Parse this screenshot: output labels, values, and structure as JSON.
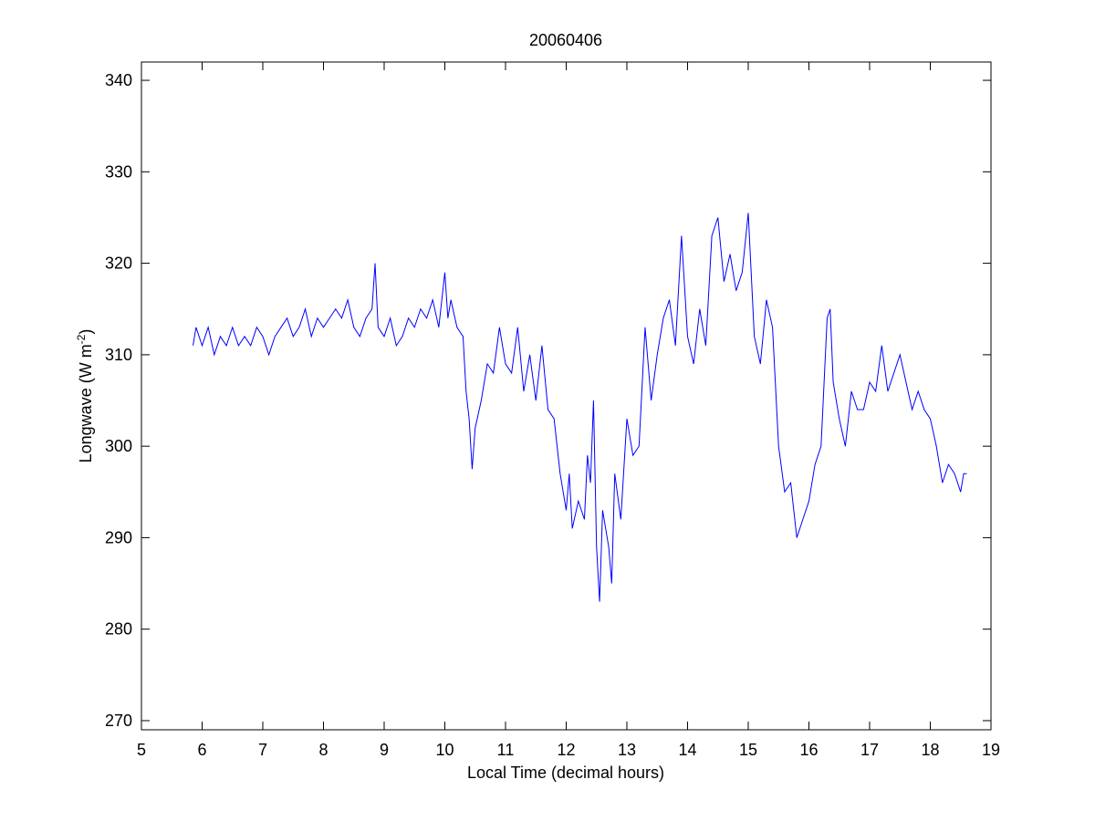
{
  "chart_data": {
    "type": "line",
    "title": "20060406",
    "xlabel": "Local Time (decimal hours)",
    "ylabel": {
      "text": "Longwave (W m",
      "superscript": "-2",
      "suffix": ")"
    },
    "xlim": [
      5,
      19
    ],
    "xticks": [
      5,
      6,
      7,
      8,
      9,
      10,
      11,
      12,
      13,
      14,
      15,
      16,
      17,
      18,
      19
    ],
    "ylim": [
      269,
      342
    ],
    "yticks": [
      270,
      280,
      290,
      300,
      310,
      320,
      330,
      340
    ],
    "grid": false,
    "series": [
      {
        "name": "Longwave",
        "color": "#0000ff",
        "x": [
          5.85,
          5.9,
          6.0,
          6.1,
          6.2,
          6.3,
          6.4,
          6.5,
          6.6,
          6.7,
          6.8,
          6.9,
          7.0,
          7.1,
          7.2,
          7.3,
          7.4,
          7.5,
          7.6,
          7.7,
          7.8,
          7.9,
          8.0,
          8.1,
          8.2,
          8.3,
          8.4,
          8.5,
          8.6,
          8.7,
          8.8,
          8.85,
          8.9,
          9.0,
          9.1,
          9.2,
          9.3,
          9.4,
          9.5,
          9.6,
          9.7,
          9.8,
          9.9,
          10.0,
          10.05,
          10.1,
          10.2,
          10.3,
          10.35,
          10.4,
          10.45,
          10.5,
          10.6,
          10.7,
          10.8,
          10.9,
          11.0,
          11.1,
          11.2,
          11.3,
          11.4,
          11.5,
          11.6,
          11.7,
          11.8,
          11.9,
          12.0,
          12.05,
          12.1,
          12.2,
          12.3,
          12.35,
          12.4,
          12.45,
          12.5,
          12.55,
          12.6,
          12.7,
          12.75,
          12.8,
          12.9,
          13.0,
          13.1,
          13.2,
          13.3,
          13.4,
          13.5,
          13.6,
          13.7,
          13.8,
          13.9,
          14.0,
          14.1,
          14.2,
          14.3,
          14.4,
          14.5,
          14.6,
          14.7,
          14.8,
          14.9,
          15.0,
          15.1,
          15.2,
          15.3,
          15.4,
          15.5,
          15.6,
          15.7,
          15.8,
          15.9,
          16.0,
          16.1,
          16.2,
          16.3,
          16.35,
          16.4,
          16.5,
          16.6,
          16.7,
          16.8,
          16.9,
          17.0,
          17.1,
          17.2,
          17.3,
          17.4,
          17.5,
          17.6,
          17.7,
          17.8,
          17.9,
          18.0,
          18.1,
          18.2,
          18.3,
          18.4,
          18.5,
          18.55,
          18.6
        ],
        "values": [
          311,
          313,
          311,
          313,
          310,
          312,
          311,
          313,
          311,
          312,
          311,
          313,
          312,
          310,
          312,
          313,
          314,
          312,
          313,
          315,
          312,
          314,
          313,
          314,
          315,
          314,
          316,
          313,
          312,
          314,
          315,
          320,
          313,
          312,
          314,
          311,
          312,
          314,
          313,
          315,
          314,
          316,
          313,
          319,
          314,
          316,
          313,
          312,
          306,
          303,
          297.5,
          302,
          305,
          309,
          308,
          313,
          309,
          308,
          313,
          306,
          310,
          305,
          311,
          304,
          303,
          297,
          293,
          297,
          291,
          294,
          292,
          299,
          296,
          305,
          289,
          283,
          293,
          289,
          285,
          297,
          292,
          303,
          299,
          300,
          313,
          305,
          310,
          314,
          316,
          311,
          323,
          312,
          309,
          315,
          311,
          323,
          325,
          318,
          321,
          317,
          319,
          325.5,
          312,
          309,
          316,
          313,
          300,
          295,
          296,
          290,
          292,
          294,
          298,
          300,
          314,
          315,
          307,
          303,
          300,
          306,
          304,
          304,
          307,
          306,
          311,
          306,
          308,
          310,
          307,
          304,
          306,
          304,
          303,
          300,
          296,
          298,
          297,
          295,
          297,
          297
        ]
      }
    ]
  }
}
